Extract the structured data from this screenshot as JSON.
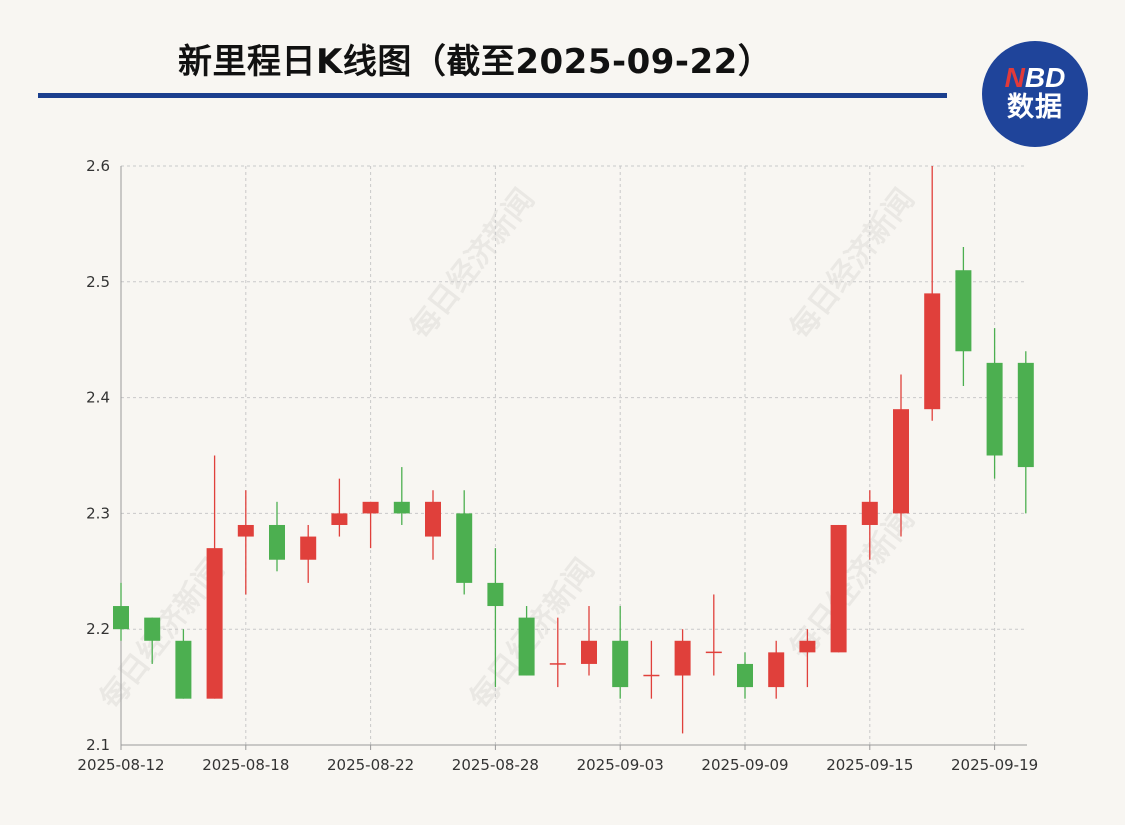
{
  "header": {
    "title": "新里程日K线图（截至2025-09-22）"
  },
  "logo": {
    "line1_n": "N",
    "line1_rest": "BD",
    "line2": "数据"
  },
  "watermark": {
    "text": "每日经济新闻"
  },
  "colors": {
    "up": "#e0403b",
    "down": "#4caf50",
    "brand": "#1f449a",
    "rule": "#1b3f8e"
  },
  "chart_data": {
    "type": "candlestick",
    "ylim": [
      2.1,
      2.6
    ],
    "yticks": [
      2.1,
      2.2,
      2.3,
      2.4,
      2.5,
      2.6
    ],
    "ytick_labels": [
      "2.1",
      "2.2",
      "2.3",
      "2.4",
      "2.5",
      "2.6"
    ],
    "xtick_labels": [
      "2025-08-12",
      "2025-08-18",
      "2025-08-22",
      "2025-08-28",
      "2025-09-03",
      "2025-09-09",
      "2025-09-15",
      "2025-09-19"
    ],
    "xtick_indices": [
      0,
      4,
      8,
      12,
      16,
      20,
      24,
      28
    ],
    "grid": true,
    "candles": [
      {
        "date": "2025-08-12",
        "open": 2.22,
        "close": 2.2,
        "high": 2.24,
        "low": 2.19
      },
      {
        "date": "2025-08-13",
        "open": 2.21,
        "close": 2.19,
        "high": 2.21,
        "low": 2.17
      },
      {
        "date": "2025-08-14",
        "open": 2.19,
        "close": 2.14,
        "high": 2.2,
        "low": 2.14
      },
      {
        "date": "2025-08-15",
        "open": 2.14,
        "close": 2.27,
        "high": 2.35,
        "low": 2.14
      },
      {
        "date": "2025-08-18",
        "open": 2.28,
        "close": 2.29,
        "high": 2.32,
        "low": 2.23
      },
      {
        "date": "2025-08-19",
        "open": 2.29,
        "close": 2.26,
        "high": 2.31,
        "low": 2.25
      },
      {
        "date": "2025-08-20",
        "open": 2.26,
        "close": 2.28,
        "high": 2.29,
        "low": 2.24
      },
      {
        "date": "2025-08-21",
        "open": 2.29,
        "close": 2.3,
        "high": 2.33,
        "low": 2.28
      },
      {
        "date": "2025-08-22",
        "open": 2.3,
        "close": 2.31,
        "high": 2.31,
        "low": 2.27
      },
      {
        "date": "2025-08-25",
        "open": 2.31,
        "close": 2.3,
        "high": 2.34,
        "low": 2.29
      },
      {
        "date": "2025-08-26",
        "open": 2.28,
        "close": 2.31,
        "high": 2.32,
        "low": 2.26
      },
      {
        "date": "2025-08-27",
        "open": 2.3,
        "close": 2.24,
        "high": 2.32,
        "low": 2.23
      },
      {
        "date": "2025-08-28",
        "open": 2.24,
        "close": 2.22,
        "high": 2.27,
        "low": 2.15
      },
      {
        "date": "2025-08-29",
        "open": 2.21,
        "close": 2.16,
        "high": 2.22,
        "low": 2.16
      },
      {
        "date": "2025-09-01",
        "open": 2.17,
        "close": 2.17,
        "high": 2.21,
        "low": 2.15
      },
      {
        "date": "2025-09-02",
        "open": 2.17,
        "close": 2.19,
        "high": 2.22,
        "low": 2.16
      },
      {
        "date": "2025-09-03",
        "open": 2.19,
        "close": 2.15,
        "high": 2.22,
        "low": 2.14
      },
      {
        "date": "2025-09-04",
        "open": 2.16,
        "close": 2.16,
        "high": 2.19,
        "low": 2.14
      },
      {
        "date": "2025-09-05",
        "open": 2.16,
        "close": 2.19,
        "high": 2.2,
        "low": 2.11
      },
      {
        "date": "2025-09-08",
        "open": 2.18,
        "close": 2.18,
        "high": 2.23,
        "low": 2.16
      },
      {
        "date": "2025-09-09",
        "open": 2.17,
        "close": 2.15,
        "high": 2.18,
        "low": 2.14
      },
      {
        "date": "2025-09-10",
        "open": 2.15,
        "close": 2.18,
        "high": 2.19,
        "low": 2.14
      },
      {
        "date": "2025-09-11",
        "open": 2.18,
        "close": 2.19,
        "high": 2.2,
        "low": 2.15
      },
      {
        "date": "2025-09-12",
        "open": 2.18,
        "close": 2.29,
        "high": 2.29,
        "low": 2.18
      },
      {
        "date": "2025-09-15",
        "open": 2.29,
        "close": 2.31,
        "high": 2.32,
        "low": 2.26
      },
      {
        "date": "2025-09-16",
        "open": 2.3,
        "close": 2.39,
        "high": 2.42,
        "low": 2.28
      },
      {
        "date": "2025-09-17",
        "open": 2.39,
        "close": 2.49,
        "high": 2.6,
        "low": 2.38
      },
      {
        "date": "2025-09-18",
        "open": 2.51,
        "close": 2.44,
        "high": 2.53,
        "low": 2.41
      },
      {
        "date": "2025-09-19",
        "open": 2.43,
        "close": 2.35,
        "high": 2.46,
        "low": 2.33
      },
      {
        "date": "2025-09-22",
        "open": 2.43,
        "close": 2.34,
        "high": 2.44,
        "low": 2.3
      }
    ]
  }
}
